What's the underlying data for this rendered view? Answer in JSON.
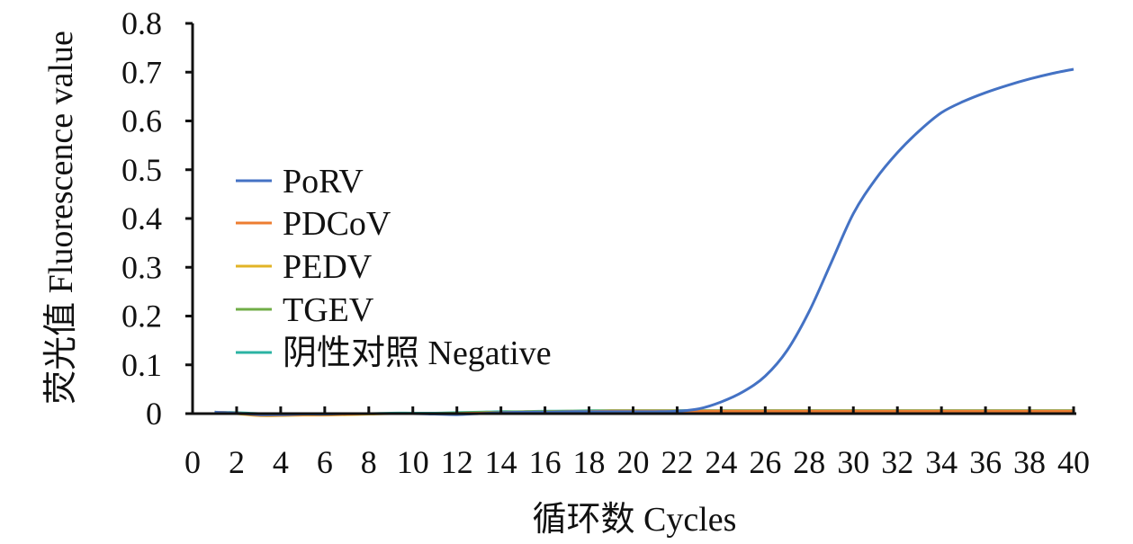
{
  "chart_data": {
    "type": "line",
    "title": "",
    "xlabel": "循环数 Cycles",
    "ylabel": "荧光值 Fluorescence value",
    "xlim": [
      0,
      40
    ],
    "ylim": [
      0,
      0.8
    ],
    "xticks": [
      "0",
      "2",
      "4",
      "6",
      "8",
      "10",
      "12",
      "14",
      "16",
      "18",
      "20",
      "22",
      "24",
      "26",
      "28",
      "30",
      "32",
      "34",
      "36",
      "38",
      "40"
    ],
    "yticks": [
      "0",
      "0.1",
      "0.2",
      "0.3",
      "0.4",
      "0.5",
      "0.6",
      "0.7",
      "0.8"
    ],
    "grid": false,
    "legend_position": "center-left",
    "x": [
      1,
      2,
      3,
      4,
      5,
      6,
      7,
      8,
      9,
      10,
      11,
      12,
      13,
      14,
      15,
      16,
      17,
      18,
      19,
      20,
      21,
      22,
      23,
      24,
      25,
      26,
      27,
      28,
      29,
      30,
      31,
      32,
      33,
      34,
      35,
      36,
      37,
      38,
      39,
      40
    ],
    "series": [
      {
        "name": "PoRV",
        "color": "#4472C4",
        "values": [
          0.003,
          0.001,
          -0.002,
          -0.002,
          -0.001,
          -0.001,
          0,
          0,
          0,
          0,
          -0.001,
          -0.002,
          0,
          0.002,
          0.003,
          0.003,
          0.004,
          0.004,
          0.004,
          0.004,
          0.004,
          0.005,
          0.01,
          0.024,
          0.045,
          0.077,
          0.13,
          0.21,
          0.31,
          0.41,
          0.48,
          0.535,
          0.58,
          0.617,
          0.64,
          0.658,
          0.673,
          0.686,
          0.697,
          0.706
        ]
      },
      {
        "name": "PDCoV",
        "color": "#ED7D31",
        "values": [
          0.003,
          0.001,
          -0.003,
          -0.003,
          -0.002,
          -0.002,
          -0.001,
          0,
          0,
          0,
          0,
          0,
          0.001,
          0.002,
          0.003,
          0.003,
          0.004,
          0.004,
          0.005,
          0.005,
          0.005,
          0.005,
          0.005,
          0.005,
          0.005,
          0.005,
          0.005,
          0.005,
          0.005,
          0.005,
          0.005,
          0.005,
          0.005,
          0.005,
          0.005,
          0.005,
          0.005,
          0.005,
          0.005,
          0.005
        ]
      },
      {
        "name": "PEDV",
        "color": "#E2B326",
        "values": [
          0.003,
          0,
          -0.004,
          -0.004,
          -0.003,
          -0.003,
          -0.002,
          -0.001,
          0,
          0,
          0,
          0,
          0.001,
          0.002,
          0.003,
          0.003,
          0.004,
          0.004,
          0.005,
          0.005,
          0.005,
          0.005,
          0.005,
          0.005,
          0.005,
          0.005,
          0.005,
          0.005,
          0.005,
          0.005,
          0.005,
          0.005,
          0.005,
          0.005,
          0.005,
          0.005,
          0.005,
          0.005,
          0.005,
          0.005
        ]
      },
      {
        "name": "TGEV",
        "color": "#70AD47",
        "values": [
          0.003,
          0.001,
          -0.002,
          -0.002,
          -0.002,
          -0.001,
          -0.001,
          0,
          0,
          0,
          0,
          0.001,
          0.002,
          0.003,
          0.004,
          0.004,
          0.005,
          0.005,
          0.006,
          0.006,
          0.006,
          0.006,
          0.006,
          0.006,
          0.006,
          0.006,
          0.006,
          0.006,
          0.006,
          0.006,
          0.006,
          0.006,
          0.006,
          0.006,
          0.006,
          0.006,
          0.006,
          0.006,
          0.006,
          0.006
        ]
      },
      {
        "name": "阴性对照 Negative",
        "color": "#2BB3A3",
        "values": [
          0.003,
          0.002,
          0,
          0,
          0,
          0,
          0,
          0,
          0.001,
          0.001,
          0.001,
          0.002,
          0.003,
          0.004,
          0.004,
          0.005,
          0.005,
          0.006,
          0.006,
          0.006,
          0.006,
          0.006,
          0.006,
          0.006,
          0.006,
          0.006,
          0.006,
          0.006,
          0.006,
          0.006,
          0.006,
          0.006,
          0.006,
          0.006,
          0.006,
          0.006,
          0.006,
          0.006,
          0.006,
          0.006
        ]
      }
    ]
  }
}
